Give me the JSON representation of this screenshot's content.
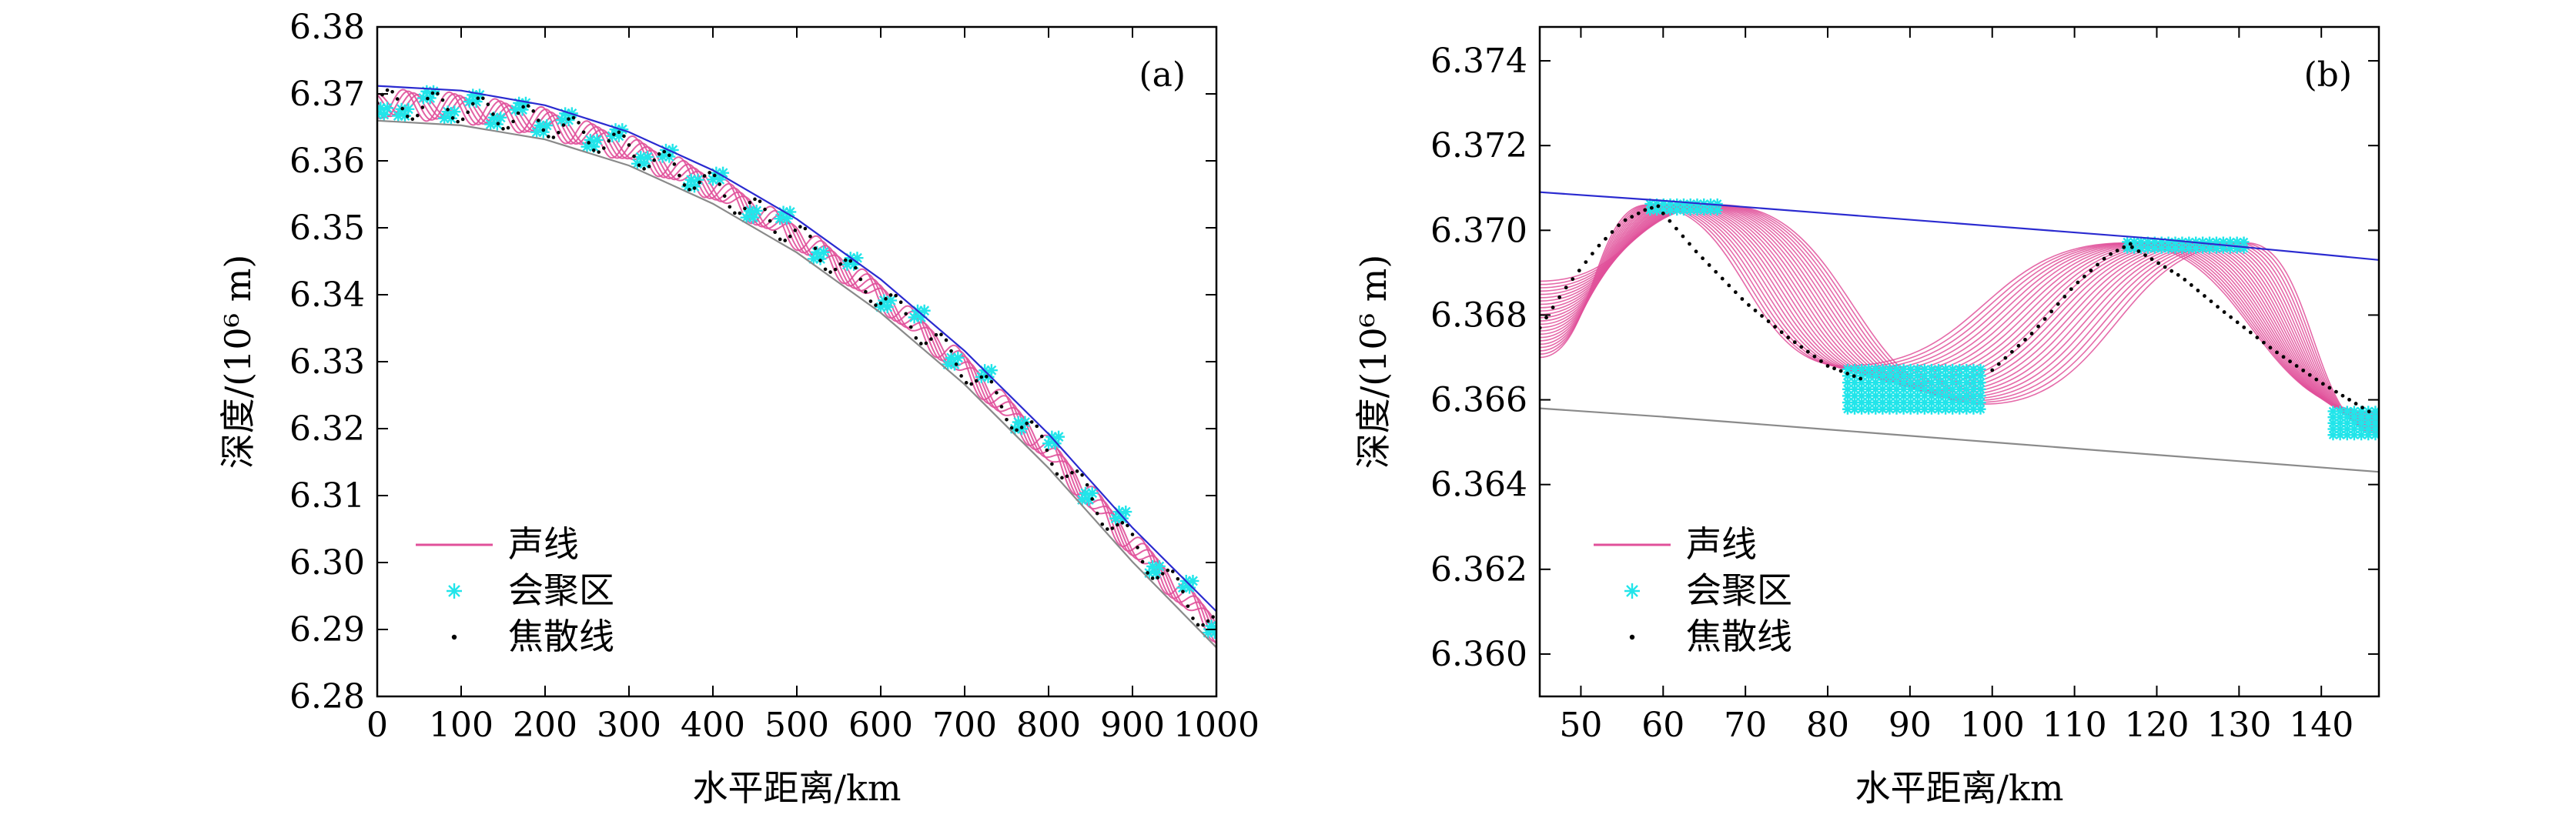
{
  "colors": {
    "ray": "#e0509a",
    "caustic_zone": "#22e5ea",
    "caustic_line": "#000000",
    "upper_boundary": "#2a2ad0",
    "lower_boundary": "#8a8a8a"
  },
  "chart_data": [
    {
      "type": "line",
      "panel_label": "(a)",
      "xlabel": "水平距离/km",
      "ylabel": "深度/(10⁶ m)",
      "xlim": [
        0,
        1000
      ],
      "ylim": [
        6.28,
        6.38
      ],
      "xticks": [
        "0",
        "100",
        "200",
        "300",
        "400",
        "500",
        "600",
        "700",
        "800",
        "900",
        "1000"
      ],
      "yticks": [
        "6.28",
        "6.29",
        "6.30",
        "6.31",
        "6.32",
        "6.33",
        "6.34",
        "6.35",
        "6.36",
        "6.37",
        "6.38"
      ],
      "legend": {
        "position": "bottom-left",
        "entries": [
          "声线",
          "会聚区",
          "焦散线"
        ],
        "markers": [
          "—",
          "*",
          "·"
        ]
      },
      "series": [
        {
          "name": "upper boundary",
          "role": "upper",
          "x": [
            0,
            100,
            200,
            300,
            400,
            500,
            600,
            700,
            800,
            900,
            1000
          ],
          "y": [
            6.3712,
            6.3705,
            6.3683,
            6.3643,
            6.3586,
            6.3513,
            6.3423,
            6.3316,
            6.3192,
            6.3052,
            6.2927
          ]
        },
        {
          "name": "lower boundary",
          "role": "lower",
          "x": [
            0,
            100,
            200,
            300,
            400,
            500,
            600,
            700,
            800,
            900,
            1000
          ],
          "y": [
            6.366,
            6.3653,
            6.3632,
            6.3593,
            6.3536,
            6.3463,
            6.3373,
            6.3266,
            6.3141,
            6.3001,
            6.2873
          ]
        }
      ],
      "rays": {
        "name": "声线",
        "x_start": 0,
        "x_end": 1000,
        "loop_period_km": 55,
        "count": 5
      },
      "caustic_zones": {
        "name": "会聚区",
        "x": [
          0,
          25,
          55,
          80,
          110,
          135,
          165,
          190,
          220,
          250,
          280,
          310,
          340,
          370,
          400,
          440,
          480,
          520,
          560,
          600,
          640,
          680,
          720,
          760,
          800,
          840,
          880,
          920,
          960,
          990
        ],
        "side": [
          "low",
          "low",
          "high",
          "low",
          "high",
          "low",
          "high",
          "low",
          "high",
          "low",
          "high",
          "low",
          "high",
          "low",
          "high",
          "low",
          "high",
          "low",
          "high",
          "low",
          "high",
          "low",
          "high",
          "low",
          "high",
          "low",
          "high",
          "low",
          "high",
          "low"
        ]
      },
      "caustic_lines": {
        "name": "焦散线",
        "x_start": 0,
        "x_end": 1000
      }
    },
    {
      "type": "line",
      "panel_label": "(b)",
      "xlabel": "水平距离/km",
      "ylabel": "深度/(10⁶ m)",
      "xlim": [
        45,
        147
      ],
      "ylim": [
        6.359,
        6.3748
      ],
      "xticks": [
        "50",
        "60",
        "70",
        "80",
        "90",
        "100",
        "110",
        "120",
        "130",
        "140"
      ],
      "yticks": [
        "6.360",
        "6.362",
        "6.364",
        "6.366",
        "6.368",
        "6.370",
        "6.372",
        "6.374"
      ],
      "legend": {
        "position": "bottom-left",
        "entries": [
          "声线",
          "会聚区",
          "焦散线"
        ],
        "markers": [
          "—",
          "*",
          "·"
        ]
      },
      "series": [
        {
          "name": "upper boundary",
          "role": "upper",
          "x": [
            45,
            60,
            80,
            100,
            120,
            147
          ],
          "y": [
            6.3709,
            6.3707,
            6.3704,
            6.3701,
            6.3698,
            6.3693
          ]
        },
        {
          "name": "lower boundary",
          "role": "lower",
          "x": [
            45,
            60,
            80,
            100,
            120,
            147
          ],
          "y": [
            6.3658,
            6.3656,
            6.3653,
            6.365,
            6.3647,
            6.3643
          ]
        }
      ],
      "rays": {
        "name": "声线",
        "count": 24,
        "start": {
          "x": 45,
          "y_min": 6.367,
          "y_max": 6.3688
        },
        "crest1": {
          "x_min": 58,
          "x_max": 67,
          "y": 6.3706
        },
        "trough": {
          "x_min": 82,
          "x_max": 99,
          "y_min": 6.3659,
          "y_max": 6.3668
        },
        "crest2": {
          "x_min": 116,
          "x_max": 131,
          "y": 6.3697
        },
        "end": {
          "x": 147,
          "y_min": 6.3652,
          "y_max": 6.3657
        }
      },
      "caustic_zones": {
        "name": "会聚区",
        "regions": [
          {
            "x_min": 58,
            "x_max": 67,
            "y_min": 6.3704,
            "y_max": 6.3707
          },
          {
            "x_min": 82,
            "x_max": 99,
            "y_min": 6.3657,
            "y_max": 6.3668
          },
          {
            "x_min": 116,
            "x_max": 131,
            "y_min": 6.3695,
            "y_max": 6.3698
          },
          {
            "x_min": 141,
            "x_max": 147,
            "y_min": 6.3651,
            "y_max": 6.3658
          }
        ]
      },
      "caustic_lines": {
        "name": "焦散线",
        "paths": [
          {
            "x": [
              45,
              48,
              52,
              55,
              58,
              60
            ],
            "y": [
              6.3677,
              6.3686,
              6.3696,
              6.3702,
              6.3705,
              6.3706
            ]
          },
          {
            "x": [
              60,
              64,
              70,
              75,
              80,
              84
            ],
            "y": [
              6.3704,
              6.3695,
              6.3683,
              6.3675,
              6.3668,
              6.3665
            ]
          },
          {
            "x": [
              100,
              105,
              110,
              114,
              117
            ],
            "y": [
              6.3667,
              6.3676,
              6.3687,
              6.3694,
              6.3697
            ]
          },
          {
            "x": [
              117,
              123,
              128,
              134,
              140,
              146
            ],
            "y": [
              6.3696,
              6.3689,
              6.3681,
              6.3672,
              6.3664,
              6.3657
            ]
          }
        ]
      }
    }
  ]
}
